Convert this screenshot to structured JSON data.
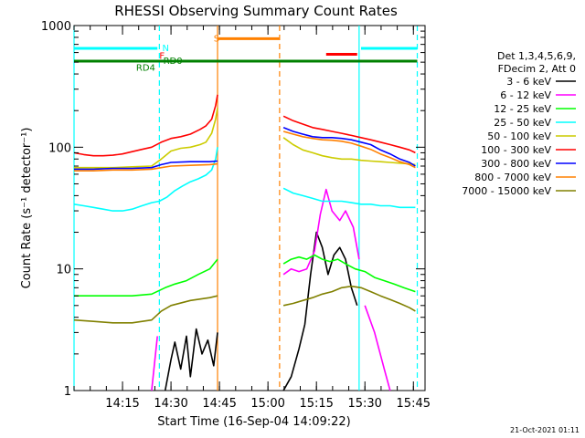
{
  "chart_data": {
    "type": "line",
    "title": "RHESSI Observing Summary Count Rates",
    "xlabel": "Start Time (16-Sep-04 14:09:22)",
    "ylabel": "Count Rate (s⁻¹ detector⁻¹)",
    "yscale": "log",
    "ylim": [
      1,
      1000
    ],
    "xlim_minutes": [
      14.0,
      15.81
    ],
    "xticks": [
      {
        "label": "14:15",
        "value": 14.25
      },
      {
        "label": "14:30",
        "value": 14.5
      },
      {
        "label": "14:45",
        "value": 14.75
      },
      {
        "label": "15:00",
        "value": 15.0
      },
      {
        "label": "15:15",
        "value": 15.25
      },
      {
        "label": "15:30",
        "value": 15.5
      },
      {
        "label": "15:45",
        "value": 15.75
      }
    ],
    "yticks": [
      {
        "label": "1",
        "value": 1
      },
      {
        "label": "10",
        "value": 10
      },
      {
        "label": "100",
        "value": 100
      },
      {
        "label": "1000",
        "value": 1000
      }
    ],
    "legend": {
      "placement": "right",
      "header": [
        "Det 1,3,4,5,6,9,",
        "FDecim 2, Att 0"
      ],
      "entries": [
        {
          "label": "3 - 6 keV",
          "color": "#000000"
        },
        {
          "label": "6 - 12 keV",
          "color": "#ff00ff"
        },
        {
          "label": "12 - 25 keV",
          "color": "#00ff00"
        },
        {
          "label": "25 - 50 keV",
          "color": "#00ffff"
        },
        {
          "label": "50 - 100 keV",
          "color": "#cccc00"
        },
        {
          "label": "100 - 300 keV",
          "color": "#ff0000"
        },
        {
          "label": "300 - 800 keV",
          "color": "#0000ff"
        },
        {
          "label": "800 - 7000 keV",
          "color": "#ff8000"
        },
        {
          "label": "7000 - 15000 keV",
          "color": "#808000"
        }
      ]
    },
    "series": [
      {
        "name": "3 - 6 keV",
        "color": "#000000",
        "segments": [
          {
            "x": [
              14.47,
              14.5,
              14.52,
              14.55,
              14.58,
              14.6,
              14.63,
              14.66,
              14.69,
              14.72,
              14.74
            ],
            "y": [
              1,
              1.8,
              2.5,
              1.5,
              2.8,
              1.3,
              3.2,
              2.0,
              2.6,
              1.6,
              3.0
            ]
          },
          {
            "x": [
              15.08,
              15.12,
              15.16,
              15.19,
              15.22,
              15.25,
              15.28,
              15.31,
              15.34,
              15.37,
              15.4,
              15.43,
              15.46
            ],
            "y": [
              1,
              1.3,
              2.2,
              3.5,
              9.0,
              20.0,
              15.0,
              9.0,
              13.0,
              15.0,
              12.0,
              7.0,
              5.0
            ]
          }
        ]
      },
      {
        "name": "6 - 12 keV",
        "color": "#ff00ff",
        "segments": [
          {
            "x": [
              14.4,
              14.43
            ],
            "y": [
              1,
              2.8
            ]
          },
          {
            "x": [
              15.08,
              15.12,
              15.16,
              15.2,
              15.24,
              15.27,
              15.3,
              15.33,
              15.37,
              15.4,
              15.44,
              15.47
            ],
            "y": [
              9,
              10,
              9.5,
              10,
              14,
              28,
              45,
              30,
              25,
              30,
              22,
              12
            ]
          },
          {
            "x": [
              15.5,
              15.55,
              15.6,
              15.63
            ],
            "y": [
              5,
              3,
              1.5,
              1
            ]
          }
        ]
      },
      {
        "name": "12 - 25 keV",
        "color": "#00ff00",
        "segments": [
          {
            "x": [
              14.0,
              14.1,
              14.2,
              14.3,
              14.4,
              14.47,
              14.52,
              14.58,
              14.64,
              14.7,
              14.74
            ],
            "y": [
              6,
              6,
              6,
              6,
              6.2,
              7,
              7.5,
              8,
              9,
              10,
              12
            ]
          },
          {
            "x": [
              15.08,
              15.12,
              15.16,
              15.2,
              15.24,
              15.28,
              15.32,
              15.36,
              15.4,
              15.45,
              15.5,
              15.55,
              15.6,
              15.65,
              15.7,
              15.76
            ],
            "y": [
              11,
              12,
              12.5,
              12,
              13,
              12,
              11.5,
              12,
              11,
              10,
              9.5,
              8.5,
              8,
              7.5,
              7,
              6.5
            ]
          }
        ]
      },
      {
        "name": "25 - 50 keV",
        "color": "#00ffff",
        "segments": [
          {
            "x": [
              14.0,
              14.05,
              14.1,
              14.15,
              14.2,
              14.25,
              14.3,
              14.35,
              14.4,
              14.44,
              14.48,
              14.52,
              14.56,
              14.6,
              14.64,
              14.68,
              14.71,
              14.73,
              14.74
            ],
            "y": [
              34,
              33,
              32,
              31,
              30,
              30,
              31,
              33,
              35,
              36,
              39,
              44,
              48,
              52,
              55,
              59,
              65,
              80,
              100
            ]
          },
          {
            "x": [
              15.08,
              15.13,
              15.18,
              15.23,
              15.28,
              15.33,
              15.38,
              15.43,
              15.48,
              15.53,
              15.58,
              15.63,
              15.68,
              15.73,
              15.76
            ],
            "y": [
              46,
              42,
              40,
              38,
              36,
              36,
              36,
              35,
              34,
              34,
              33,
              33,
              32,
              32,
              32
            ]
          }
        ]
      },
      {
        "name": "50 - 100 keV",
        "color": "#cccc00",
        "segments": [
          {
            "x": [
              14.0,
              14.1,
              14.2,
              14.3,
              14.4,
              14.45,
              14.5,
              14.55,
              14.6,
              14.65,
              14.68,
              14.71,
              14.73,
              14.74
            ],
            "y": [
              68,
              68,
              68,
              69,
              70,
              80,
              93,
              98,
              100,
              105,
              110,
              130,
              170,
              210
            ]
          },
          {
            "x": [
              15.08,
              15.13,
              15.18,
              15.23,
              15.28,
              15.33,
              15.38,
              15.43,
              15.48,
              15.53,
              15.58,
              15.63,
              15.68,
              15.73,
              15.76
            ],
            "y": [
              120,
              105,
              95,
              90,
              85,
              82,
              80,
              80,
              78,
              77,
              76,
              75,
              74,
              73,
              72
            ]
          }
        ]
      },
      {
        "name": "100 - 300 keV",
        "color": "#ff0000",
        "segments": [
          {
            "x": [
              14.0,
              14.05,
              14.1,
              14.15,
              14.2,
              14.25,
              14.3,
              14.35,
              14.4,
              14.45,
              14.5,
              14.55,
              14.6,
              14.65,
              14.68,
              14.71,
              14.73,
              14.74
            ],
            "y": [
              90,
              87,
              85,
              85,
              86,
              88,
              92,
              96,
              100,
              110,
              118,
              122,
              128,
              140,
              150,
              170,
              220,
              270
            ]
          },
          {
            "x": [
              15.08,
              15.13,
              15.18,
              15.23,
              15.28,
              15.33,
              15.38,
              15.43,
              15.48,
              15.53,
              15.58,
              15.63,
              15.68,
              15.73,
              15.76
            ],
            "y": [
              180,
              165,
              155,
              145,
              140,
              135,
              130,
              125,
              120,
              115,
              110,
              105,
              100,
              95,
              90
            ]
          }
        ]
      },
      {
        "name": "300 - 800 keV",
        "color": "#0000ff",
        "segments": [
          {
            "x": [
              14.0,
              14.1,
              14.2,
              14.3,
              14.4,
              14.45,
              14.5,
              14.6,
              14.7,
              14.74
            ],
            "y": [
              66,
              66,
              67,
              67,
              68,
              72,
              75,
              76,
              76,
              77
            ]
          },
          {
            "x": [
              15.08,
              15.13,
              15.18,
              15.23,
              15.28,
              15.33,
              15.38,
              15.43,
              15.48,
              15.53,
              15.58,
              15.63,
              15.68,
              15.73,
              15.76
            ],
            "y": [
              145,
              135,
              128,
              122,
              120,
              120,
              118,
              115,
              110,
              105,
              95,
              88,
              80,
              75,
              70
            ]
          }
        ]
      },
      {
        "name": "800 - 7000 keV",
        "color": "#ff8000",
        "segments": [
          {
            "x": [
              14.0,
              14.1,
              14.2,
              14.3,
              14.4,
              14.45,
              14.5,
              14.6,
              14.7,
              14.74
            ],
            "y": [
              64,
              64,
              65,
              65,
              66,
              68,
              70,
              71,
              72,
              73
            ]
          },
          {
            "x": [
              15.08,
              15.13,
              15.18,
              15.23,
              15.28,
              15.33,
              15.38,
              15.43,
              15.48,
              15.53,
              15.58,
              15.63,
              15.68,
              15.73,
              15.76
            ],
            "y": [
              135,
              128,
              122,
              118,
              115,
              114,
              112,
              108,
              102,
              96,
              88,
              82,
              76,
              72,
              68
            ]
          }
        ]
      },
      {
        "name": "7000 - 15000 keV",
        "color": "#808000",
        "segments": [
          {
            "x": [
              14.0,
              14.1,
              14.2,
              14.3,
              14.4,
              14.45,
              14.5,
              14.6,
              14.7,
              14.74
            ],
            "y": [
              3.8,
              3.7,
              3.6,
              3.6,
              3.8,
              4.5,
              5.0,
              5.5,
              5.8,
              6.0
            ]
          },
          {
            "x": [
              15.08,
              15.13,
              15.18,
              15.23,
              15.28,
              15.33,
              15.38,
              15.43,
              15.48,
              15.53,
              15.58,
              15.63,
              15.68,
              15.73,
              15.76
            ],
            "y": [
              5.0,
              5.2,
              5.5,
              5.8,
              6.2,
              6.5,
              7.0,
              7.2,
              7.0,
              6.5,
              6.0,
              5.6,
              5.2,
              4.8,
              4.5
            ]
          }
        ]
      }
    ],
    "vertical_markers": [
      {
        "x": 14.0,
        "color": "#00ffff",
        "style": "solid"
      },
      {
        "x": 14.44,
        "color": "#00ffff",
        "style": "dashed"
      },
      {
        "x": 14.74,
        "color": "#ff8000",
        "style": "solid"
      },
      {
        "x": 15.06,
        "color": "#ff8000",
        "style": "dashed"
      },
      {
        "x": 15.47,
        "color": "#00ffff",
        "style": "solid"
      },
      {
        "x": 15.77,
        "color": "#00ffff",
        "style": "dashed"
      }
    ],
    "flag_bars": [
      {
        "x0": 14.0,
        "x1": 14.43,
        "y": 650,
        "color": "#00ffff"
      },
      {
        "x0": 14.74,
        "x1": 15.06,
        "y": 780,
        "color": "#ff8000"
      },
      {
        "x0": 15.3,
        "x1": 15.46,
        "y": 580,
        "color": "#ff0000"
      },
      {
        "x0": 15.48,
        "x1": 15.77,
        "y": 650,
        "color": "#00ffff"
      },
      {
        "x0": 14.0,
        "x1": 15.77,
        "y": 510,
        "color": "#008000"
      }
    ],
    "annotations": [
      {
        "text": "N",
        "x": 14.455,
        "y": 660,
        "color": "#00ffff"
      },
      {
        "text": "F",
        "x": 14.44,
        "y": 570,
        "color": "#ff0000"
      },
      {
        "text": "RD0",
        "x": 14.46,
        "y": 520,
        "color": "#008000"
      },
      {
        "text": "RD4",
        "x": 14.32,
        "y": 455,
        "color": "#008000"
      },
      {
        "text": "S",
        "x": 14.72,
        "y": 790,
        "color": "#ff8000"
      }
    ],
    "footer_date": "21-Oct-2021 01:11"
  }
}
